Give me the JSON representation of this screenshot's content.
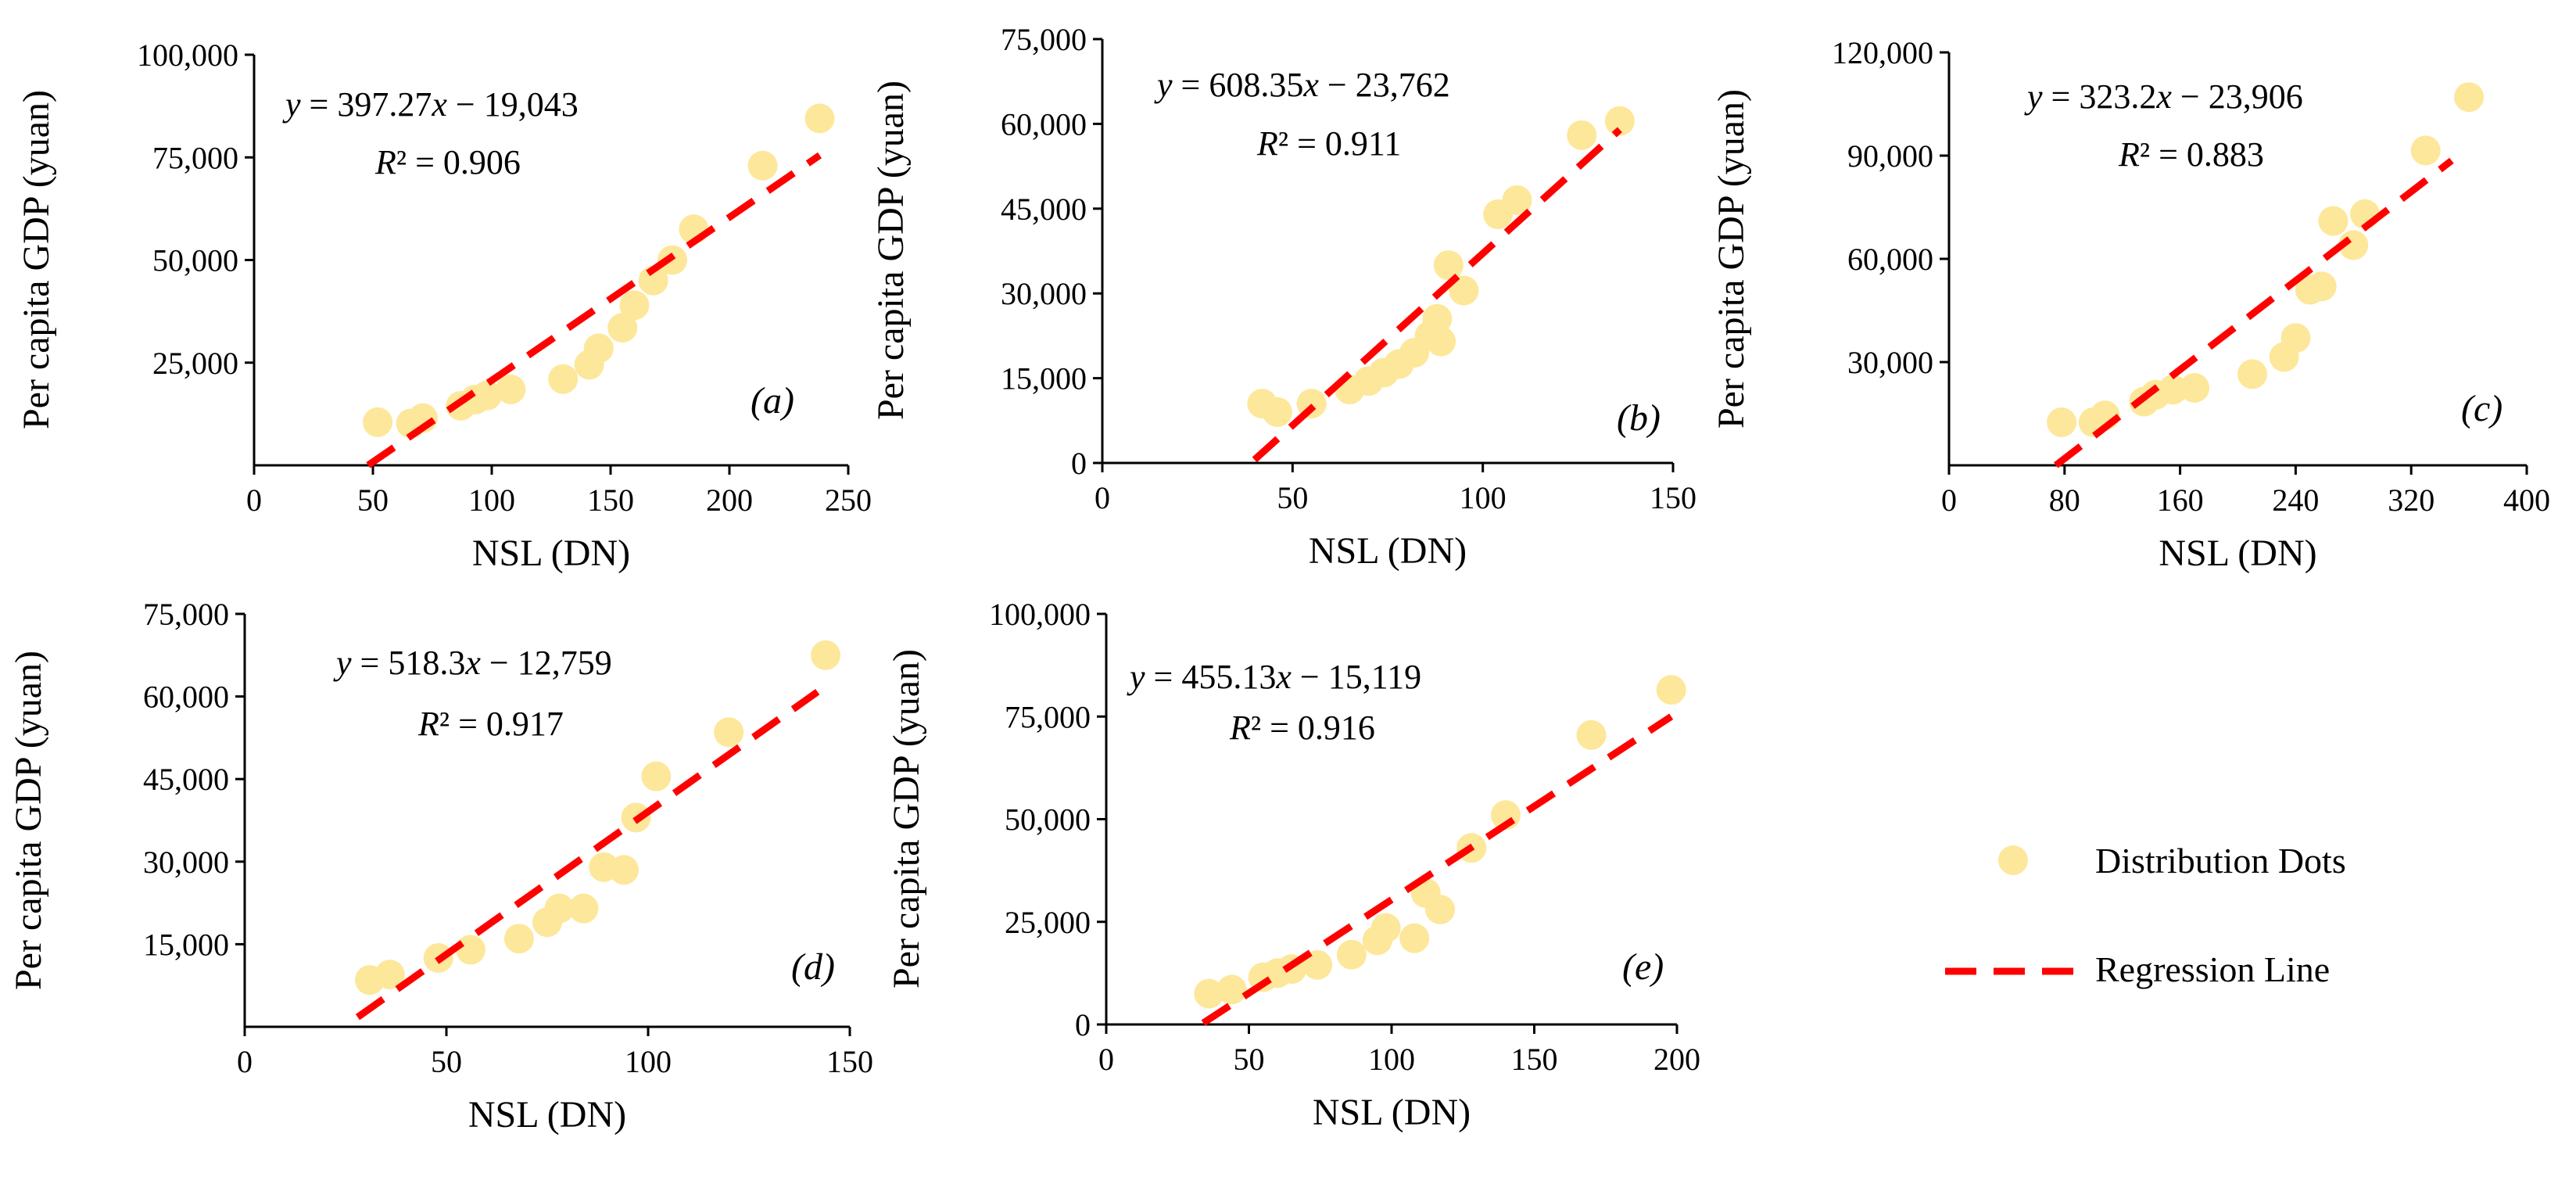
{
  "chart_data": [
    {
      "type": "scatter",
      "panel": "(a)",
      "xlabel": "NSL (DN)",
      "ylabel": "Per capita GDP  (yuan)",
      "xticks": [
        0,
        50,
        100,
        150,
        200,
        250
      ],
      "xtick_labels": [
        "0",
        "50",
        "100",
        "150",
        "200",
        "250"
      ],
      "xlim": [
        0,
        250
      ],
      "yticks": [
        25000,
        50000,
        75000,
        100000
      ],
      "ytick_labels": [
        "25,000",
        "50,000",
        "75,000",
        "100,000"
      ],
      "ylim": [
        0,
        100000
      ],
      "equation": {
        "prefix": "y",
        "body": " = 397.27",
        "var": "x",
        "suffix": " − 19,043"
      },
      "r2": {
        "symbol": "R",
        "body": "² = 0.906"
      },
      "fit": {
        "slope": 397.27,
        "intercept": -19043,
        "x_range": [
          48,
          238
        ]
      },
      "points": [
        [
          52,
          10500
        ],
        [
          66,
          10200
        ],
        [
          71,
          11500
        ],
        [
          87,
          14500
        ],
        [
          93,
          16000
        ],
        [
          98,
          17000
        ],
        [
          108,
          18500
        ],
        [
          130,
          21000
        ],
        [
          141,
          24500
        ],
        [
          145,
          28500
        ],
        [
          155,
          33500
        ],
        [
          160,
          39000
        ],
        [
          168,
          45000
        ],
        [
          176,
          50000
        ],
        [
          185,
          57500
        ],
        [
          214,
          73000
        ],
        [
          238,
          84500
        ]
      ]
    },
    {
      "type": "scatter",
      "panel": "(b)",
      "xlabel": "NSL (DN)",
      "ylabel": "Per capita GDP  (yuan)",
      "xticks": [
        0,
        50,
        100,
        150
      ],
      "xtick_labels": [
        "0",
        "50",
        "100",
        "150"
      ],
      "xlim": [
        0,
        150
      ],
      "yticks": [
        0,
        15000,
        30000,
        45000,
        60000,
        75000
      ],
      "ytick_labels": [
        "0",
        "15,000",
        "30,000",
        "45,000",
        "60,000",
        "75,000"
      ],
      "ylim": [
        0,
        75000
      ],
      "equation": {
        "prefix": "y",
        "body": " = 608.35",
        "var": "x",
        "suffix": " − 23,762"
      },
      "r2": {
        "symbol": "R",
        "body": "² = 0.911"
      },
      "fit": {
        "slope": 608.35,
        "intercept": -23762,
        "x_range": [
          40,
          136
        ]
      },
      "points": [
        [
          42,
          10500
        ],
        [
          46,
          9000
        ],
        [
          55,
          10500
        ],
        [
          65,
          13000
        ],
        [
          70,
          14500
        ],
        [
          74,
          16000
        ],
        [
          78,
          17500
        ],
        [
          82,
          19500
        ],
        [
          86,
          22500
        ],
        [
          88,
          25500
        ],
        [
          89,
          21500
        ],
        [
          91,
          35000
        ],
        [
          95,
          30500
        ],
        [
          104,
          44000
        ],
        [
          109,
          46500
        ],
        [
          126,
          58000
        ],
        [
          136,
          60500
        ]
      ]
    },
    {
      "type": "scatter",
      "panel": "(c)",
      "xlabel": "NSL (DN)",
      "ylabel": "Per capita GDP  (yuan)",
      "xticks": [
        0,
        80,
        160,
        240,
        320,
        400
      ],
      "xtick_labels": [
        "0",
        "80",
        "160",
        "240",
        "320",
        "400"
      ],
      "xlim": [
        0,
        400
      ],
      "yticks": [
        30000,
        60000,
        90000,
        120000
      ],
      "ytick_labels": [
        "30,000",
        "60,000",
        "90,000",
        "120,000"
      ],
      "ylim": [
        0,
        120000
      ],
      "equation": {
        "prefix": "y",
        "body": " = 323.2",
        "var": "x",
        "suffix": " − 23,906"
      },
      "r2": {
        "symbol": "R",
        "body": "² = 0.883"
      },
      "fit": {
        "slope": 323.2,
        "intercept": -23906,
        "x_range": [
          74,
          348
        ]
      },
      "points": [
        [
          78,
          12500
        ],
        [
          100,
          12500
        ],
        [
          108,
          14500
        ],
        [
          135,
          18500
        ],
        [
          143,
          20500
        ],
        [
          155,
          22000
        ],
        [
          170,
          22500
        ],
        [
          210,
          26500
        ],
        [
          232,
          31500
        ],
        [
          240,
          37000
        ],
        [
          250,
          51000
        ],
        [
          258,
          52000
        ],
        [
          266,
          71000
        ],
        [
          280,
          64000
        ],
        [
          288,
          73000
        ],
        [
          330,
          91500
        ],
        [
          360,
          107000
        ]
      ]
    },
    {
      "type": "scatter",
      "panel": "(d)",
      "xlabel": "NSL (DN)",
      "ylabel": "Per capita GDP  (yuan)",
      "xticks": [
        0,
        50,
        100,
        150
      ],
      "xtick_labels": [
        "0",
        "50",
        "100",
        "150"
      ],
      "xlim": [
        0,
        150
      ],
      "yticks": [
        15000,
        30000,
        45000,
        60000,
        75000
      ],
      "ytick_labels": [
        "15,000",
        "30,000",
        "45,000",
        "60,000",
        "75,000"
      ],
      "ylim": [
        0,
        75000
      ],
      "equation": {
        "prefix": "y",
        "body": " = 518.3",
        "var": "x",
        "suffix": " − 12,759"
      },
      "r2": {
        "symbol": "R",
        "body": "² = 0.917"
      },
      "fit": {
        "slope": 518.3,
        "intercept": -12759,
        "x_range": [
          28,
          142
        ]
      },
      "points": [
        [
          31,
          8500
        ],
        [
          36,
          9500
        ],
        [
          48,
          12500
        ],
        [
          56,
          14000
        ],
        [
          68,
          16000
        ],
        [
          75,
          19000
        ],
        [
          78,
          21500
        ],
        [
          84,
          21500
        ],
        [
          89,
          29000
        ],
        [
          94,
          28500
        ],
        [
          97,
          38000
        ],
        [
          102,
          45500
        ],
        [
          120,
          53500
        ],
        [
          144,
          67500
        ]
      ]
    },
    {
      "type": "scatter",
      "panel": "(e)",
      "xlabel": "NSL (DN)",
      "ylabel": "Per capita GDP  (yuan)",
      "xticks": [
        0,
        50,
        100,
        150,
        200
      ],
      "xtick_labels": [
        "0",
        "50",
        "100",
        "150",
        "200"
      ],
      "xlim": [
        0,
        200
      ],
      "yticks": [
        0,
        25000,
        50000,
        75000,
        100000
      ],
      "ytick_labels": [
        "0",
        "25,000",
        "50,000",
        "75,000",
        "100,000"
      ],
      "ylim": [
        0,
        100000
      ],
      "equation": {
        "prefix": "y",
        "body": " = 455.13",
        "var": "x",
        "suffix": " − 15,119"
      },
      "r2": {
        "symbol": "R",
        "body": "² = 0.916"
      },
      "fit": {
        "slope": 455.13,
        "intercept": -15119,
        "x_range": [
          34,
          198
        ]
      },
      "points": [
        [
          36,
          7500
        ],
        [
          44,
          8500
        ],
        [
          55,
          11500
        ],
        [
          60,
          12500
        ],
        [
          65,
          13500
        ],
        [
          74,
          14500
        ],
        [
          86,
          17000
        ],
        [
          95,
          20500
        ],
        [
          98,
          23500
        ],
        [
          108,
          21000
        ],
        [
          112,
          32000
        ],
        [
          117,
          28000
        ],
        [
          128,
          43000
        ],
        [
          140,
          51000
        ],
        [
          170,
          70500
        ],
        [
          198,
          81500
        ]
      ]
    }
  ],
  "legend": {
    "dots_label": "Distribution Dots",
    "line_label": "Regression Line"
  },
  "colors": {
    "dot": "#fde79a",
    "regression": "#ff0000"
  }
}
